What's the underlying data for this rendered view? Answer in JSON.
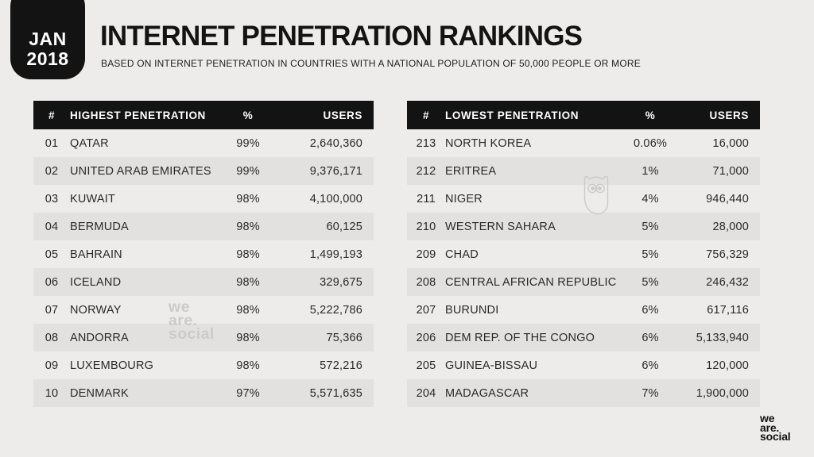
{
  "header": {
    "badge": {
      "month": "JAN",
      "year": "2018"
    },
    "title": "INTERNET PENETRATION RANKINGS",
    "subtitle": "BASED ON INTERNET PENETRATION IN COUNTRIES WITH A NATIONAL POPULATION OF 50,000 PEOPLE OR MORE"
  },
  "colors": {
    "background": "#edecea",
    "table_header_bg": "#141313",
    "table_header_text": "#ffffff",
    "row_stripe": "#e2e1df",
    "body_text": "#2b2a28",
    "watermark": "#cccbc9"
  },
  "watermark": {
    "lines": [
      "we",
      "are.",
      "social"
    ],
    "owl_icon": "hootsuite-owl-outline"
  },
  "brand": {
    "lines": [
      "we",
      "are.",
      "social"
    ]
  },
  "chart_data": [
    {
      "type": "table",
      "title": "HIGHEST PENETRATION",
      "columns": [
        "#",
        "HIGHEST PENETRATION",
        "%",
        "USERS"
      ],
      "rows": [
        {
          "rank": "01",
          "country": "QATAR",
          "pct": "99%",
          "users": "2,640,360"
        },
        {
          "rank": "02",
          "country": "UNITED ARAB EMIRATES",
          "pct": "99%",
          "users": "9,376,171"
        },
        {
          "rank": "03",
          "country": "KUWAIT",
          "pct": "98%",
          "users": "4,100,000"
        },
        {
          "rank": "04",
          "country": "BERMUDA",
          "pct": "98%",
          "users": "60,125"
        },
        {
          "rank": "05",
          "country": "BAHRAIN",
          "pct": "98%",
          "users": "1,499,193"
        },
        {
          "rank": "06",
          "country": "ICELAND",
          "pct": "98%",
          "users": "329,675"
        },
        {
          "rank": "07",
          "country": "NORWAY",
          "pct": "98%",
          "users": "5,222,786"
        },
        {
          "rank": "08",
          "country": "ANDORRA",
          "pct": "98%",
          "users": "75,366"
        },
        {
          "rank": "09",
          "country": "LUXEMBOURG",
          "pct": "98%",
          "users": "572,216"
        },
        {
          "rank": "10",
          "country": "DENMARK",
          "pct": "97%",
          "users": "5,571,635"
        }
      ]
    },
    {
      "type": "table",
      "title": "LOWEST PENETRATION",
      "columns": [
        "#",
        "LOWEST PENETRATION",
        "%",
        "USERS"
      ],
      "rows": [
        {
          "rank": "213",
          "country": "NORTH KOREA",
          "pct": "0.06%",
          "users": "16,000"
        },
        {
          "rank": "212",
          "country": "ERITREA",
          "pct": "1%",
          "users": "71,000"
        },
        {
          "rank": "211",
          "country": "NIGER",
          "pct": "4%",
          "users": "946,440"
        },
        {
          "rank": "210",
          "country": "WESTERN SAHARA",
          "pct": "5%",
          "users": "28,000"
        },
        {
          "rank": "209",
          "country": "CHAD",
          "pct": "5%",
          "users": "756,329"
        },
        {
          "rank": "208",
          "country": "CENTRAL AFRICAN REPUBLIC",
          "pct": "5%",
          "users": "246,432"
        },
        {
          "rank": "207",
          "country": "BURUNDI",
          "pct": "6%",
          "users": "617,116"
        },
        {
          "rank": "206",
          "country": "DEM REP. OF THE CONGO",
          "pct": "6%",
          "users": "5,133,940"
        },
        {
          "rank": "205",
          "country": "GUINEA-BISSAU",
          "pct": "6%",
          "users": "120,000"
        },
        {
          "rank": "204",
          "country": "MADAGASCAR",
          "pct": "7%",
          "users": "1,900,000"
        }
      ]
    }
  ]
}
